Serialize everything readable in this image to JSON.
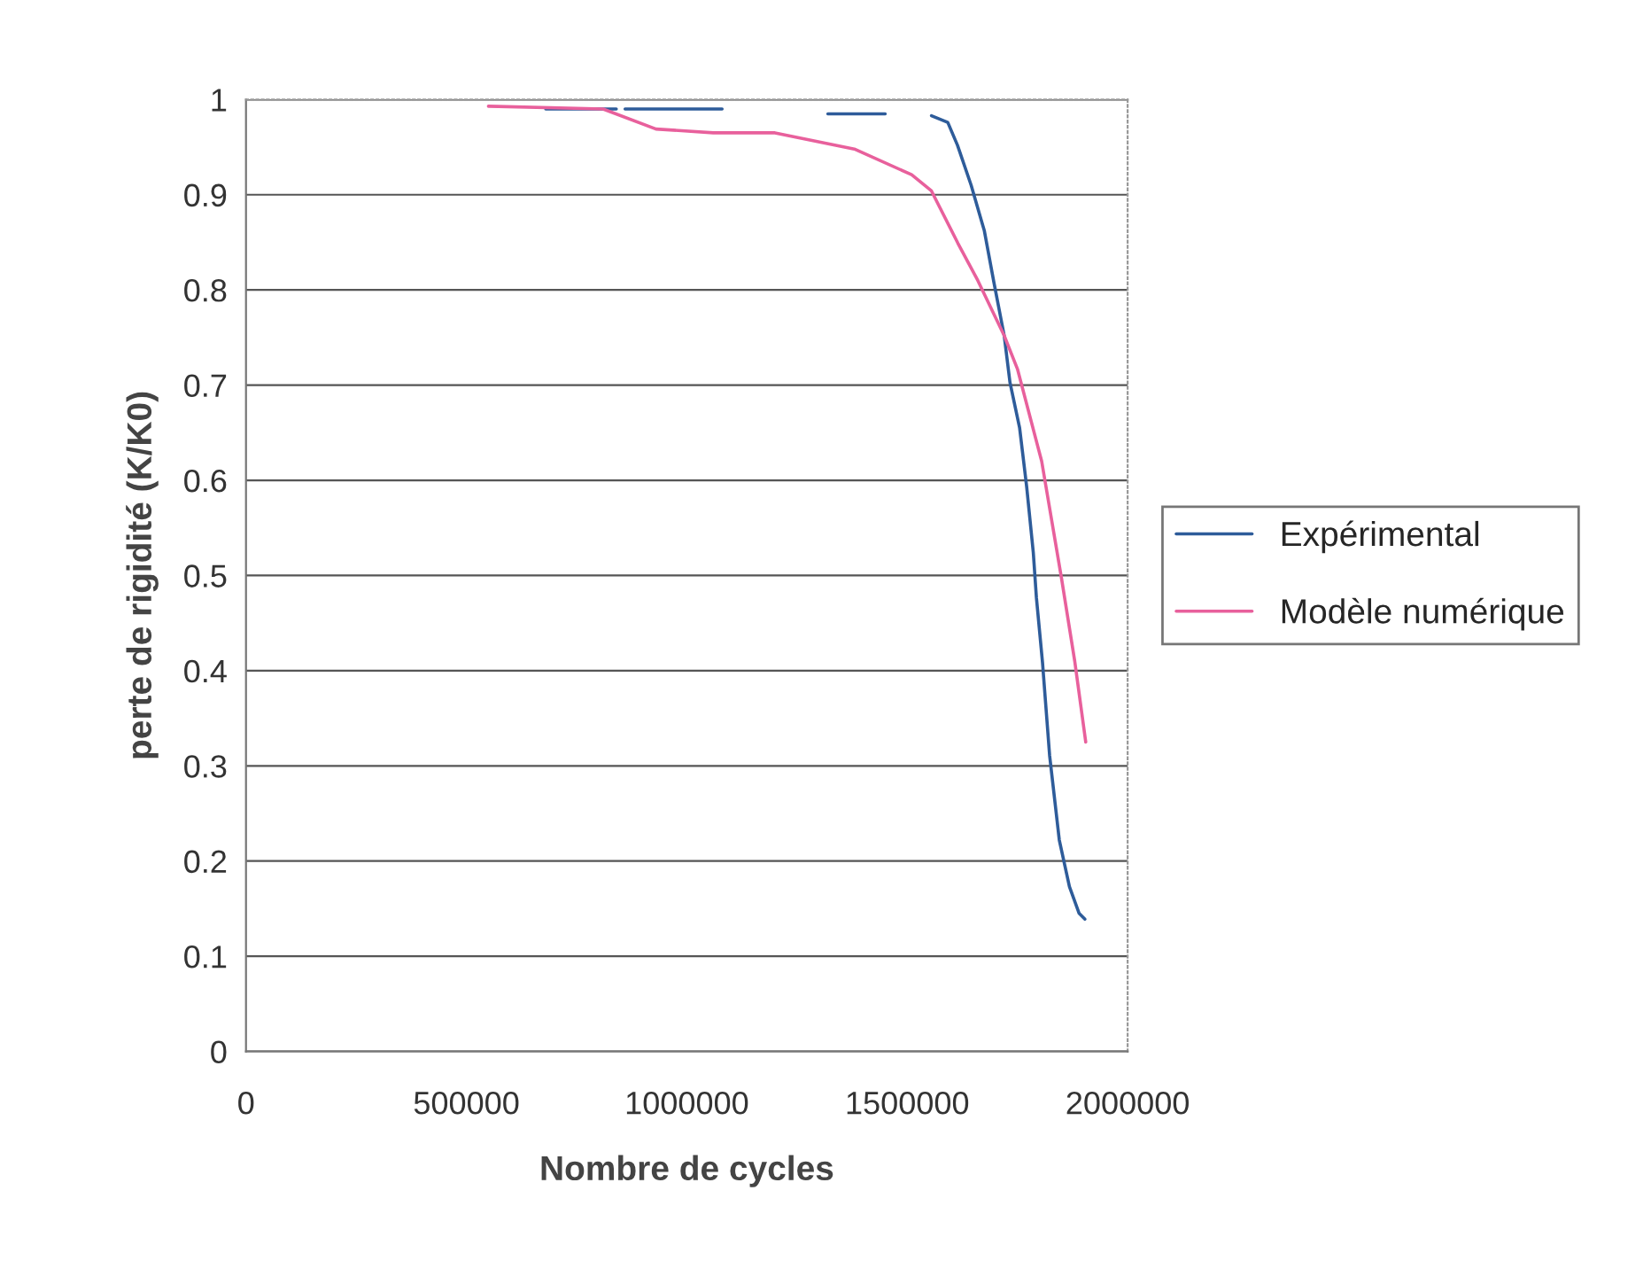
{
  "chart_data": {
    "type": "line",
    "xlabel": "Nombre de cycles",
    "ylabel": "perte de rigidité (K/K0)",
    "xlim": [
      0,
      2000000
    ],
    "xticks": [
      0,
      500000,
      1000000,
      1500000,
      2000000
    ],
    "ylim": [
      0,
      1
    ],
    "yticks": [
      0,
      0.1,
      0.2,
      0.3,
      0.4,
      0.5,
      0.6,
      0.7,
      0.8,
      0.9,
      1
    ],
    "grid": "y",
    "legend": "right",
    "line_style": "solid",
    "marker": "none",
    "series": [
      {
        "name": "Expérimental",
        "color": "#2e5c9a",
        "x": [
          680000,
          840000,
          850000,
          860000,
          1080000,
          1090000,
          1320000,
          1450000,
          1460000,
          1555000,
          1592000,
          1614000,
          1645000,
          1675000,
          1697000,
          1720000,
          1733000,
          1755000,
          1771000,
          1786000,
          1793000,
          1807000,
          1823000,
          1845000,
          1868000,
          1890000,
          1903000
        ],
        "values": [
          0.99,
          0.99,
          null,
          0.99,
          0.99,
          null,
          0.985,
          0.985,
          null,
          0.983,
          0.976,
          0.952,
          0.91,
          0.862,
          0.807,
          0.752,
          0.703,
          0.655,
          0.593,
          0.524,
          0.477,
          0.408,
          0.311,
          0.222,
          0.173,
          0.145,
          0.139
        ]
      },
      {
        "name": "Modèle numérique",
        "color": "#e8609c",
        "x": [
          550000,
          810000,
          930000,
          1060000,
          1200000,
          1380000,
          1510000,
          1555000,
          1615000,
          1660000,
          1720000,
          1750000,
          1805000,
          1850000,
          1880000,
          1905000
        ],
        "values": [
          0.993,
          0.99,
          0.969,
          0.965,
          0.965,
          0.948,
          0.921,
          0.904,
          0.849,
          0.81,
          0.752,
          0.717,
          0.62,
          0.497,
          0.41,
          0.325
        ]
      }
    ]
  }
}
